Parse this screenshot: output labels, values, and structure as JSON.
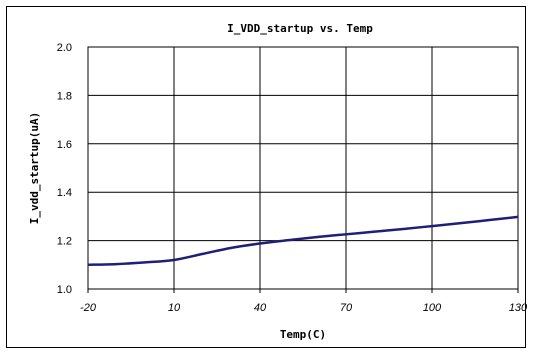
{
  "chart_data": {
    "type": "line",
    "title": "I_VDD_startup vs. Temp",
    "xlabel": "Temp(C)",
    "ylabel": "I_vdd_startup(uA)",
    "x_ticks": [
      "-20",
      "10",
      "40",
      "70",
      "100",
      "130"
    ],
    "y_ticks": [
      "1.0",
      "1.2",
      "1.4",
      "1.6",
      "1.8",
      "2.0"
    ],
    "xlim": [
      -20,
      130
    ],
    "ylim": [
      1.0,
      2.0
    ],
    "grid": true,
    "legend": "none",
    "series": [
      {
        "color": "#1f1f7a",
        "x": [
          -20,
          -10,
          0,
          10,
          20,
          30,
          40,
          50,
          60,
          70,
          80,
          90,
          100,
          110,
          120,
          130
        ],
        "y": [
          1.1,
          1.103,
          1.11,
          1.12,
          1.145,
          1.17,
          1.188,
          1.202,
          1.215,
          1.226,
          1.237,
          1.248,
          1.26,
          1.272,
          1.285,
          1.298
        ]
      }
    ]
  }
}
